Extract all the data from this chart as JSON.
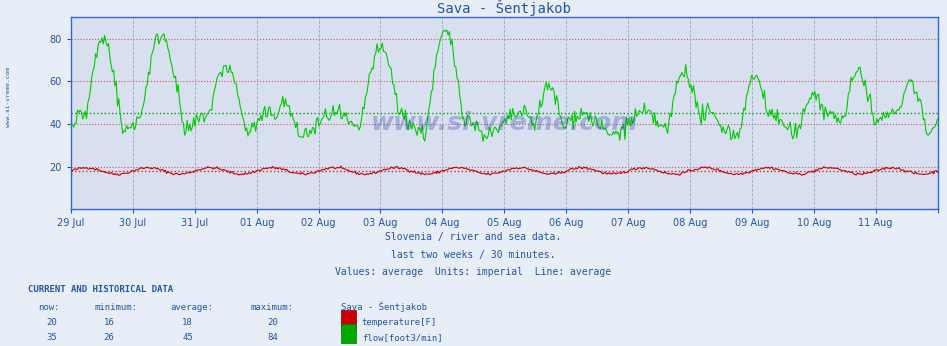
{
  "title": "Sava - Šentjakob",
  "bg_color": "#e8eef8",
  "plot_bg_color": "#d8e0f0",
  "title_color": "#2255aa",
  "axis_color": "#2255aa",
  "tick_color": "#2255aa",
  "grid_color_h": "#cc4444",
  "grid_color_v": "#8899bb",
  "avg_line_color_green": "#009900",
  "avg_line_color_red": "#cc2222",
  "flow_color": "#00cc00",
  "temp_color": "#cc0000",
  "border_color": "#3366cc",
  "ylim": [
    0,
    90
  ],
  "yticks": [
    20,
    40,
    60,
    80
  ],
  "x_labels": [
    "29 Jul",
    "30 Jul",
    "31 Jul",
    "01 Aug",
    "02 Aug",
    "03 Aug",
    "04 Aug",
    "05 Aug",
    "06 Aug",
    "07 Aug",
    "08 Aug",
    "09 Aug",
    "10 Aug",
    "11 Aug",
    ""
  ],
  "n_points": 672,
  "temp_now": 20,
  "temp_min": 16,
  "temp_avg": 18,
  "temp_max": 20,
  "flow_now": 35,
  "flow_min": 26,
  "flow_avg": 45,
  "flow_max": 84,
  "subtitle1": "Slovenia / river and sea data.",
  "subtitle2": "last two weeks / 30 minutes.",
  "subtitle3": "Values: average  Units: imperial  Line: average",
  "table_header": "CURRENT AND HISTORICAL DATA",
  "col_headers": [
    "now:",
    "minimum:",
    "average:",
    "maximum:",
    "Sava - Šentjakob"
  ],
  "watermark": "www.si-vreme.com",
  "watermark_color": "#2244aa",
  "left_label": "www.si-vreme.com"
}
